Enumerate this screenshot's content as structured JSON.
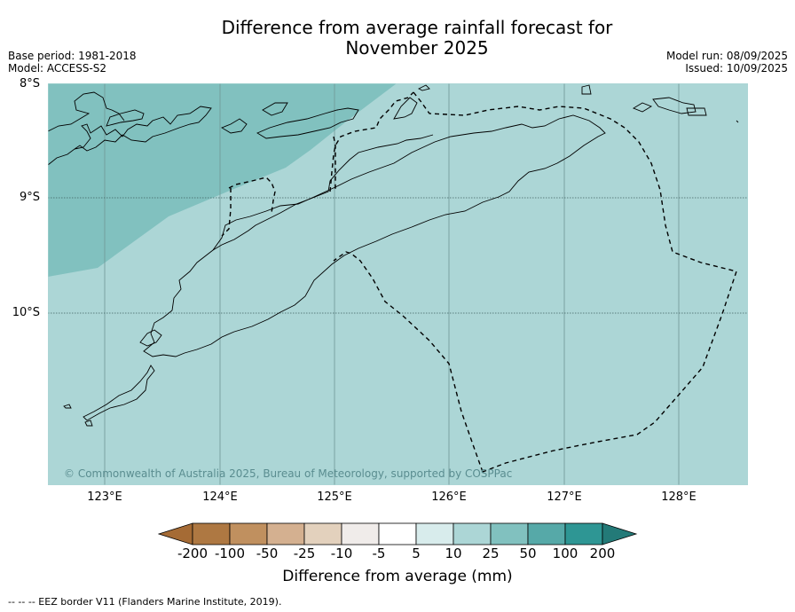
{
  "title_line1": "Difference from average rainfall forecast for",
  "title_line2": "November 2025",
  "meta_left": {
    "base_period": "Base period: 1981-2018",
    "model": "Model: ACCESS-S2"
  },
  "meta_right": {
    "model_run": "Model run: 08/09/2025",
    "issued": "Issued: 10/09/2025"
  },
  "map": {
    "lat_labels": [
      "8°S",
      "9°S",
      "10°S"
    ],
    "lon_labels": [
      "123°E",
      "124°E",
      "125°E",
      "126°E",
      "127°E",
      "128°E"
    ],
    "copyright": "© Commonwealth of Australia 2025, Bureau of Meteorology, supported by COSPPac",
    "colors": {
      "light_band": "#acd6d6",
      "medium_band": "#81c1bf",
      "land_outline": "#000000"
    }
  },
  "colorbar": {
    "labels": [
      "-200",
      "-100",
      "-50",
      "-25",
      "-10",
      "-5",
      "5",
      "10",
      "25",
      "50",
      "100",
      "200"
    ],
    "colors": [
      "#a56b35",
      "#ae7842",
      "#c0905f",
      "#d4b090",
      "#e3d1bd",
      "#f0ecea",
      "#ffffff",
      "#d8ecec",
      "#acd6d6",
      "#81c1bf",
      "#56a9a8",
      "#2e9694",
      "#237a78"
    ],
    "title": "Difference from average (mm)"
  },
  "footnote": "--  --  -- EEZ border V11 (Flanders Marine Institute, 2019)."
}
